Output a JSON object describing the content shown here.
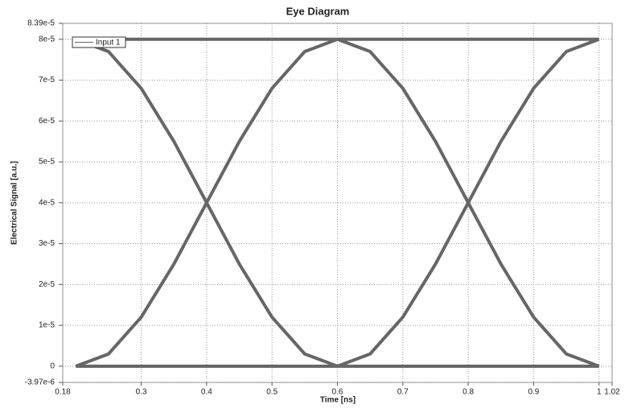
{
  "chart_data": {
    "type": "line",
    "title": "Eye Diagram",
    "x_label": "Time [ns]",
    "y_label": "Electrical Signal [a.u.]",
    "xlim": [
      0.18,
      1.02
    ],
    "xticks": [
      0.18,
      0.3,
      0.4,
      0.5,
      0.6,
      0.7,
      0.8,
      0.9,
      1,
      1.02
    ],
    "ylim": [
      -3.97e-06,
      8.39e-05
    ],
    "yticks": [
      {
        "value": -3.97e-06,
        "label": "-3.97e-6"
      },
      0,
      {
        "value": 1e-05,
        "label": "1e-5"
      },
      {
        "value": 2e-05,
        "label": "2e-5"
      },
      {
        "value": 3e-05,
        "label": "3e-5"
      },
      {
        "value": 4e-05,
        "label": "4e-5"
      },
      {
        "value": 5e-05,
        "label": "5e-5"
      },
      {
        "value": 6e-05,
        "label": "6e-5"
      },
      {
        "value": 7e-05,
        "label": "7e-5"
      },
      {
        "value": 8e-05,
        "label": "8e-5"
      },
      {
        "value": 8.39e-05,
        "label": "8.39e-5"
      }
    ],
    "grid": true,
    "legend": "upper left",
    "series": [
      {
        "name": "Input 1",
        "color": "#666666",
        "x": [
          0.2,
          0.25,
          0.3,
          0.35,
          0.4,
          0.45,
          0.5,
          0.55,
          0.6,
          0.65,
          0.7,
          0.75,
          0.8,
          0.85,
          0.9,
          0.95,
          1,
          null,
          0.2,
          0.25,
          0.3,
          0.35,
          0.4,
          0.45,
          0.5,
          0.55,
          0.6,
          0.65,
          0.7,
          0.75,
          0.8,
          0.85,
          0.9,
          0.95,
          1,
          null,
          0.2,
          0.25,
          0.3,
          0.35,
          0.4,
          0.45,
          0.5,
          0.55,
          0.6,
          0.65,
          0.7,
          0.75,
          0.8,
          0.85,
          0.9,
          0.95,
          1,
          null,
          0.2,
          0.25,
          0.3,
          0.35,
          0.4,
          0.45,
          0.5,
          0.55,
          0.6,
          0.65,
          0.7,
          0.75,
          0.8,
          0.85,
          0.9,
          0.95,
          1,
          null,
          0.2,
          0.25,
          0.3,
          0.35,
          0.4,
          0.45,
          0.5,
          0.55,
          0.6,
          0.65,
          0.7,
          0.75,
          0.8,
          0.85,
          0.9,
          0.95,
          1,
          null,
          0.2,
          0.25,
          0.3,
          0.35,
          0.4,
          0.45,
          0.5,
          0.55,
          0.6,
          0.65,
          0.7,
          0.75,
          0.8,
          0.85,
          0.9,
          0.95,
          1,
          null,
          0.2,
          0.25,
          0.3,
          0.35,
          0.4,
          0.45,
          0.5,
          0.55,
          0.6,
          0.65,
          0.7,
          0.75,
          0.8,
          0.85,
          0.9,
          0.95,
          1,
          null,
          0.2,
          0.25,
          0.3,
          0.35,
          0.4,
          0.45,
          0.5,
          0.55,
          0.6,
          0.65,
          0.7,
          0.75,
          0.8,
          0.85,
          0.9,
          0.95,
          1
        ],
        "values": [
          0,
          0,
          0,
          0,
          0,
          0,
          0,
          0,
          0,
          0,
          0,
          0,
          0,
          0,
          0,
          0,
          0,
          null,
          0,
          0,
          0,
          0,
          0,
          0,
          0,
          0,
          0,
          3e-06,
          1.2e-05,
          2.5e-05,
          4e-05,
          5.5e-05,
          6.8e-05,
          7.7e-05,
          8e-05,
          null,
          0,
          3e-06,
          1.2e-05,
          2.5e-05,
          4e-05,
          5.5e-05,
          6.8e-05,
          7.7e-05,
          8e-05,
          7.7e-05,
          6.8e-05,
          5.5e-05,
          4e-05,
          2.5e-05,
          1.2e-05,
          3e-06,
          0,
          null,
          0,
          3e-06,
          1.2e-05,
          2.5e-05,
          4e-05,
          5.5e-05,
          6.8e-05,
          7.7e-05,
          8e-05,
          8e-05,
          8e-05,
          8e-05,
          8e-05,
          8e-05,
          8e-05,
          8e-05,
          8e-05,
          null,
          8e-05,
          7.7e-05,
          6.8e-05,
          5.5e-05,
          4e-05,
          2.5e-05,
          1.2e-05,
          3e-06,
          0,
          0,
          0,
          0,
          0,
          0,
          0,
          0,
          0,
          null,
          8e-05,
          7.7e-05,
          6.8e-05,
          5.5e-05,
          4e-05,
          2.5e-05,
          1.2e-05,
          3e-06,
          0,
          3e-06,
          1.2e-05,
          2.5e-05,
          4e-05,
          5.5e-05,
          6.8e-05,
          7.7e-05,
          8e-05,
          null,
          8e-05,
          8e-05,
          8e-05,
          8e-05,
          8e-05,
          8e-05,
          8e-05,
          8e-05,
          8e-05,
          7.7e-05,
          6.8e-05,
          5.5e-05,
          4e-05,
          2.5e-05,
          1.2e-05,
          3e-06,
          0,
          null,
          8e-05,
          8e-05,
          8e-05,
          8e-05,
          8e-05,
          8e-05,
          8e-05,
          8e-05,
          8e-05,
          8e-05,
          8e-05,
          8e-05,
          8e-05,
          8e-05,
          8e-05,
          8e-05,
          8e-05
        ]
      }
    ]
  }
}
